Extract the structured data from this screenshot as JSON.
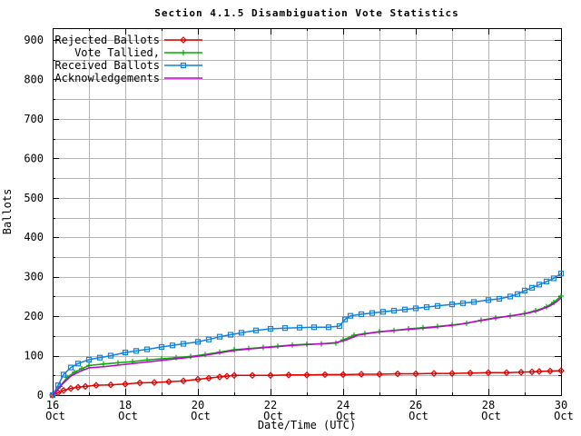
{
  "window": {
    "background": "#ffffff",
    "border_color": "#000000",
    "grid_color": "#b4b4b4"
  },
  "chart_data": {
    "type": "line",
    "title": "Section 4.1.5 Disambiguation Vote Statistics",
    "xlabel": "Date/Time (UTC)",
    "ylabel": "Ballots",
    "x_unit": "days since 16 Oct 00:00 UTC",
    "xlim": [
      0,
      14
    ],
    "ylim": [
      0,
      930
    ],
    "grid": {
      "on": true,
      "x_every_days": 1,
      "y_every_ballots": 50
    },
    "legend_position": "top-left-inside",
    "y_major_ticks": [
      {
        "value": 0,
        "label": "0"
      },
      {
        "value": 100,
        "label": "100"
      },
      {
        "value": 200,
        "label": "200"
      },
      {
        "value": 300,
        "label": "300"
      },
      {
        "value": 400,
        "label": "400"
      },
      {
        "value": 500,
        "label": "500"
      },
      {
        "value": 600,
        "label": "600"
      },
      {
        "value": 700,
        "label": "700"
      },
      {
        "value": 800,
        "label": "800"
      },
      {
        "value": 900,
        "label": "900"
      }
    ],
    "y_minor_step": 50,
    "x_major_ticks": [
      {
        "day": 0,
        "label": "16",
        "sub": "Oct"
      },
      {
        "day": 2,
        "label": "18",
        "sub": "Oct"
      },
      {
        "day": 4,
        "label": "20",
        "sub": "Oct"
      },
      {
        "day": 6,
        "label": "22",
        "sub": "Oct"
      },
      {
        "day": 8,
        "label": "24",
        "sub": "Oct"
      },
      {
        "day": 10,
        "label": "26",
        "sub": "Oct"
      },
      {
        "day": 12,
        "label": "28",
        "sub": "Oct"
      },
      {
        "day": 14,
        "label": "30",
        "sub": "Oct"
      }
    ],
    "x_minor_step_days": 1,
    "series": [
      {
        "name": "Rejected Ballots",
        "color": "#e00000",
        "marker": "diamond",
        "points": [
          [
            0,
            0
          ],
          [
            0.15,
            6
          ],
          [
            0.3,
            12
          ],
          [
            0.5,
            17
          ],
          [
            0.7,
            20
          ],
          [
            0.9,
            22
          ],
          [
            1.2,
            25
          ],
          [
            1.6,
            26
          ],
          [
            2,
            28
          ],
          [
            2.4,
            31
          ],
          [
            2.8,
            32
          ],
          [
            3.2,
            34
          ],
          [
            3.6,
            36
          ],
          [
            4,
            40
          ],
          [
            4.3,
            43
          ],
          [
            4.6,
            46
          ],
          [
            4.8,
            48
          ],
          [
            5,
            50
          ],
          [
            5.5,
            50
          ],
          [
            6,
            50
          ],
          [
            6.5,
            51
          ],
          [
            7,
            51
          ],
          [
            7.5,
            52
          ],
          [
            8,
            52
          ],
          [
            8.5,
            53
          ],
          [
            9,
            53
          ],
          [
            9.5,
            54
          ],
          [
            10,
            54
          ],
          [
            10.5,
            55
          ],
          [
            11,
            55
          ],
          [
            11.5,
            56
          ],
          [
            12,
            57
          ],
          [
            12.5,
            57
          ],
          [
            12.9,
            58
          ],
          [
            13.2,
            59
          ],
          [
            13.4,
            60
          ],
          [
            13.7,
            61
          ],
          [
            14,
            62
          ]
        ]
      },
      {
        "name": "Vote Tallied,",
        "color": "#00b000",
        "marker": "plus",
        "points": [
          [
            0,
            0
          ],
          [
            0.2,
            22
          ],
          [
            0.4,
            45
          ],
          [
            0.6,
            58
          ],
          [
            0.8,
            67
          ],
          [
            1,
            75
          ],
          [
            1.4,
            79
          ],
          [
            1.8,
            82
          ],
          [
            2.2,
            85
          ],
          [
            2.6,
            89
          ],
          [
            3,
            92
          ],
          [
            3.4,
            95
          ],
          [
            3.8,
            98
          ],
          [
            4.2,
            103
          ],
          [
            4.6,
            109
          ],
          [
            5,
            115
          ],
          [
            5.4,
            118
          ],
          [
            5.8,
            121
          ],
          [
            6.2,
            124
          ],
          [
            6.6,
            127
          ],
          [
            7,
            129
          ],
          [
            7.4,
            130
          ],
          [
            7.8,
            132
          ],
          [
            8,
            140
          ],
          [
            8.3,
            152
          ],
          [
            8.6,
            156
          ],
          [
            9,
            161
          ],
          [
            9.4,
            164
          ],
          [
            9.8,
            168
          ],
          [
            10.2,
            171
          ],
          [
            10.6,
            174
          ],
          [
            11,
            178
          ],
          [
            11.4,
            182
          ],
          [
            11.8,
            190
          ],
          [
            12.2,
            196
          ],
          [
            12.6,
            201
          ],
          [
            13,
            207
          ],
          [
            13.3,
            214
          ],
          [
            13.6,
            224
          ],
          [
            13.8,
            235
          ],
          [
            14,
            251
          ]
        ]
      },
      {
        "name": "Received Ballots",
        "color": "#1080e0",
        "marker": "square",
        "points": [
          [
            0,
            0
          ],
          [
            0.15,
            25
          ],
          [
            0.3,
            52
          ],
          [
            0.5,
            70
          ],
          [
            0.7,
            80
          ],
          [
            1,
            90
          ],
          [
            1.3,
            95
          ],
          [
            1.6,
            100
          ],
          [
            2,
            108
          ],
          [
            2.3,
            112
          ],
          [
            2.6,
            116
          ],
          [
            3,
            122
          ],
          [
            3.3,
            126
          ],
          [
            3.6,
            130
          ],
          [
            4,
            135
          ],
          [
            4.3,
            141
          ],
          [
            4.6,
            148
          ],
          [
            4.9,
            153
          ],
          [
            5.2,
            158
          ],
          [
            5.6,
            164
          ],
          [
            6,
            168
          ],
          [
            6.4,
            170
          ],
          [
            6.8,
            171
          ],
          [
            7.2,
            172
          ],
          [
            7.6,
            172
          ],
          [
            7.9,
            175
          ],
          [
            8.05,
            192
          ],
          [
            8.2,
            201
          ],
          [
            8.5,
            205
          ],
          [
            8.8,
            208
          ],
          [
            9.1,
            211
          ],
          [
            9.4,
            214
          ],
          [
            9.7,
            217
          ],
          [
            10,
            220
          ],
          [
            10.3,
            223
          ],
          [
            10.6,
            226
          ],
          [
            11,
            230
          ],
          [
            11.3,
            233
          ],
          [
            11.6,
            236
          ],
          [
            12,
            241
          ],
          [
            12.3,
            244
          ],
          [
            12.6,
            250
          ],
          [
            12.8,
            256
          ],
          [
            13,
            265
          ],
          [
            13.2,
            272
          ],
          [
            13.4,
            280
          ],
          [
            13.6,
            288
          ],
          [
            13.8,
            296
          ],
          [
            14,
            308
          ]
        ]
      },
      {
        "name": "Acknowledgements",
        "color": "#c000d0",
        "marker": "none",
        "points": [
          [
            0,
            0
          ],
          [
            0.25,
            26
          ],
          [
            0.5,
            48
          ],
          [
            0.75,
            60
          ],
          [
            1,
            69
          ],
          [
            1.4,
            72
          ],
          [
            1.8,
            76
          ],
          [
            2.2,
            80
          ],
          [
            2.6,
            84
          ],
          [
            3,
            88
          ],
          [
            3.4,
            92
          ],
          [
            3.8,
            96
          ],
          [
            4.2,
            101
          ],
          [
            4.6,
            107
          ],
          [
            5,
            113
          ],
          [
            5.4,
            117
          ],
          [
            5.8,
            120
          ],
          [
            6.2,
            123
          ],
          [
            6.6,
            126
          ],
          [
            7,
            128
          ],
          [
            7.4,
            130
          ],
          [
            7.8,
            133
          ],
          [
            8.1,
            140
          ],
          [
            8.4,
            152
          ],
          [
            8.8,
            158
          ],
          [
            9.2,
            162
          ],
          [
            9.6,
            165
          ],
          [
            10,
            168
          ],
          [
            10.4,
            171
          ],
          [
            10.8,
            175
          ],
          [
            11.2,
            179
          ],
          [
            11.6,
            186
          ],
          [
            12,
            192
          ],
          [
            12.4,
            198
          ],
          [
            12.8,
            203
          ],
          [
            13.1,
            208
          ],
          [
            13.4,
            215
          ],
          [
            13.7,
            226
          ],
          [
            13.9,
            238
          ],
          [
            14,
            246
          ]
        ]
      }
    ]
  }
}
